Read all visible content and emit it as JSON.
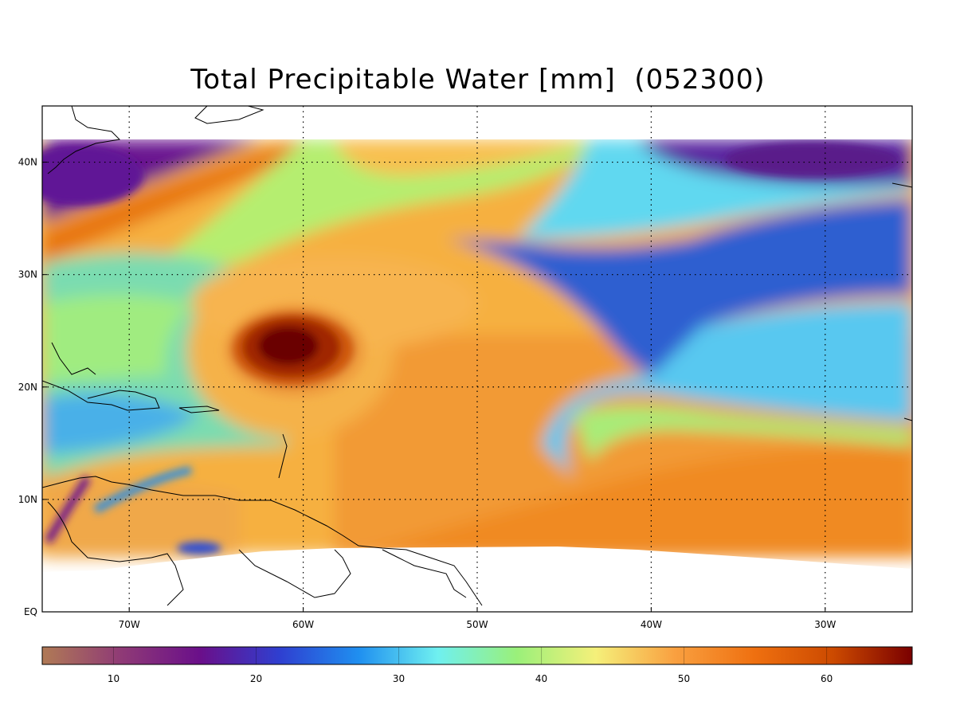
{
  "title": "Total Precipitable Water [mm]",
  "timestamp": "(052300)",
  "map": {
    "lon_range": [
      -75,
      -25
    ],
    "lat_range": [
      0,
      45
    ],
    "data_lat_top": 42,
    "lon_ticks": [
      {
        "lon": -70,
        "label": "70W"
      },
      {
        "lon": -60,
        "label": "60W"
      },
      {
        "lon": -50,
        "label": "50W"
      },
      {
        "lon": -40,
        "label": "40W"
      },
      {
        "lon": -30,
        "label": "30W"
      }
    ],
    "lat_ticks": [
      {
        "lat": 40,
        "label": "40N"
      },
      {
        "lat": 30,
        "label": "30N"
      },
      {
        "lat": 20,
        "label": "20N"
      },
      {
        "lat": 10,
        "label": "10N"
      },
      {
        "lat": 0,
        "label": "EQ"
      }
    ],
    "storm_center": {
      "lon": -61,
      "lat": 24
    }
  },
  "colorbar": {
    "range": [
      5,
      66
    ],
    "ticks": [
      10,
      20,
      30,
      40,
      50,
      60
    ],
    "stops": [
      "#b07a55",
      "#8f3a76",
      "#6a0f8a",
      "#2f3fd0",
      "#1f8ff0",
      "#6ff0f0",
      "#9af07a",
      "#f5f07a",
      "#f9a040",
      "#ef7010",
      "#cc4a00",
      "#7a0000"
    ]
  }
}
